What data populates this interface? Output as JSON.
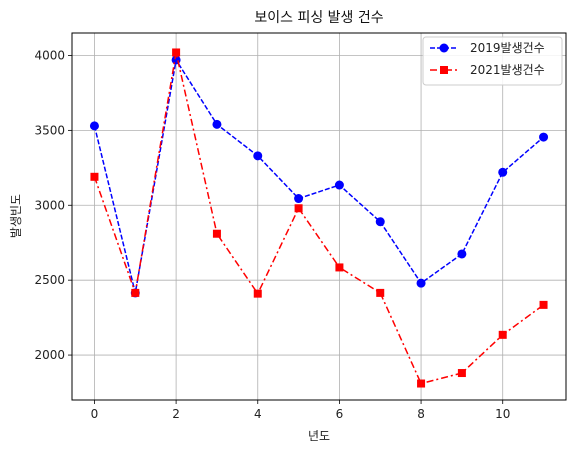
{
  "chart_data": {
    "type": "line",
    "title": "보이스 피싱 발생 건수",
    "xlabel": "년도",
    "ylabel": "발생빈도",
    "x": [
      0,
      1,
      2,
      3,
      4,
      5,
      6,
      7,
      8,
      9,
      10,
      11
    ],
    "xlim": [
      -0.55,
      11.55
    ],
    "ylim": [
      1700,
      4150
    ],
    "xticks": [
      0,
      2,
      4,
      6,
      8,
      10
    ],
    "yticks": [
      2000,
      2500,
      3000,
      3500,
      4000
    ],
    "grid": true,
    "legend": "top-right",
    "series": [
      {
        "name": "2019발생건수",
        "color": "#0000ff",
        "linestyle": "dashed",
        "marker": "circle",
        "values": [
          3530,
          2415,
          3970,
          3540,
          3330,
          3045,
          3135,
          2890,
          2480,
          2675,
          3220,
          3455
        ]
      },
      {
        "name": "2021발생건수",
        "color": "#ff0000",
        "linestyle": "dashdot",
        "marker": "square",
        "values": [
          3190,
          2415,
          4020,
          2810,
          2410,
          2980,
          2585,
          2415,
          1810,
          1880,
          2135,
          2335
        ]
      }
    ]
  }
}
